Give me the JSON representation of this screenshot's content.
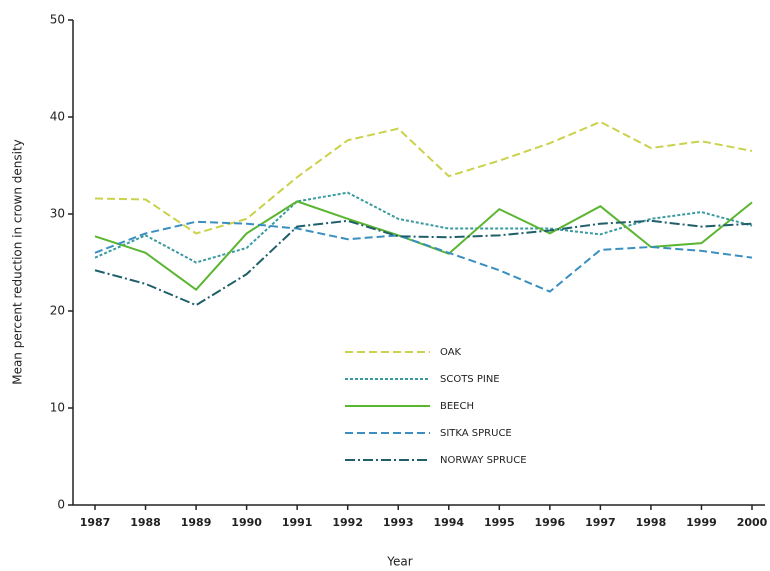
{
  "chart_data": {
    "type": "line",
    "x_label": "Year",
    "y_label": "Mean percent reduction in crown density",
    "x": [
      1987,
      1988,
      1989,
      1990,
      1991,
      1992,
      1993,
      1994,
      1995,
      1996,
      1997,
      1998,
      1999,
      2000
    ],
    "xlim": [
      1987,
      2000
    ],
    "xticks": [
      1987,
      1988,
      1989,
      1990,
      1991,
      1992,
      1993,
      1994,
      1995,
      1996,
      1997,
      1998,
      1999,
      2000
    ],
    "ylim": [
      0,
      50
    ],
    "yticks": [
      0,
      10,
      20,
      30,
      40,
      50
    ],
    "grid": false,
    "legend": "center",
    "series": [
      {
        "name": "OAK",
        "color": "#c9d24a",
        "linestyle": "dashed",
        "values": [
          31.6,
          31.5,
          28.0,
          29.5,
          33.8,
          37.6,
          38.8,
          33.9,
          35.5,
          37.3,
          39.5,
          36.8,
          37.5,
          36.5
        ]
      },
      {
        "name": "SCOTS PINE",
        "color": "#3a9aa0",
        "linestyle": "dotted",
        "values": [
          25.5,
          27.8,
          25.0,
          26.5,
          31.3,
          32.2,
          29.5,
          28.5,
          28.5,
          28.5,
          27.9,
          29.5,
          30.2,
          28.8
        ]
      },
      {
        "name": "BEECH",
        "color": "#5ab530",
        "linestyle": "solid",
        "values": [
          27.7,
          26.0,
          22.2,
          28.0,
          31.3,
          29.5,
          27.8,
          25.9,
          30.5,
          28.0,
          30.8,
          26.6,
          27.0,
          31.2
        ]
      },
      {
        "name": "SITKA SPRUCE",
        "color": "#3a8fc0",
        "linestyle": "dashed",
        "values": [
          26.0,
          28.0,
          29.2,
          29.0,
          28.5,
          27.4,
          27.8,
          26.0,
          24.2,
          22.0,
          26.3,
          26.6,
          26.2,
          25.5
        ]
      },
      {
        "name": "NORWAY SPRUCE",
        "color": "#1e5f6a",
        "linestyle": "dashdot",
        "values": [
          24.2,
          22.8,
          20.6,
          23.8,
          28.7,
          29.3,
          27.7,
          27.6,
          27.8,
          28.3,
          29.0,
          29.3,
          28.7,
          29.0
        ]
      }
    ]
  }
}
